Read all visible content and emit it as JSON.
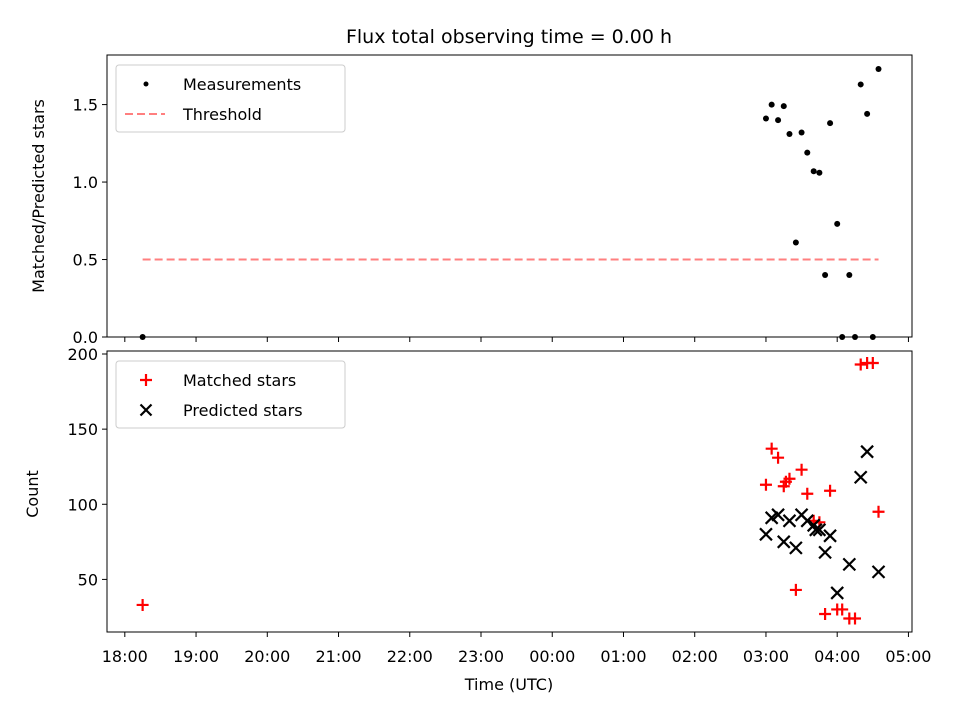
{
  "chart_data": [
    {
      "type": "scatter",
      "title": "Flux total observing time = 0.00 h",
      "xlabel": "",
      "ylabel": "Matched/Predicted stars",
      "xlim": [
        17.75,
        29.05
      ],
      "ylim": [
        0.0,
        1.82
      ],
      "yticks": [
        0.0,
        0.5,
        1.0,
        1.5
      ],
      "ytick_labels": [
        "0.0",
        "0.5",
        "1.0",
        "1.5"
      ],
      "legend_position": "top-left",
      "series": [
        {
          "name": "Measurements",
          "kind": "dot",
          "color": "#000000",
          "x": [
            18.25,
            27.0,
            27.08,
            27.17,
            27.25,
            27.33,
            27.42,
            27.5,
            27.58,
            27.67,
            27.75,
            27.83,
            27.9,
            28.0,
            28.07,
            28.17,
            28.25,
            28.33,
            28.42,
            28.5,
            28.58
          ],
          "y": [
            0.0,
            1.41,
            1.5,
            1.4,
            1.49,
            1.31,
            0.61,
            1.32,
            1.19,
            1.07,
            1.06,
            0.4,
            1.38,
            0.73,
            0.0,
            0.4,
            0.0,
            1.63,
            1.44,
            0.0,
            1.73
          ]
        },
        {
          "name": "Threshold",
          "kind": "dashed-line",
          "color": "#ff7f7f",
          "x": [
            18.25,
            28.58
          ],
          "y": [
            0.5,
            0.5
          ]
        }
      ]
    },
    {
      "type": "scatter",
      "title": "",
      "xlabel": "Time (UTC)",
      "ylabel": "Count",
      "xlim": [
        17.75,
        29.05
      ],
      "ylim": [
        15,
        202
      ],
      "yticks": [
        50,
        100,
        150,
        200
      ],
      "ytick_labels": [
        "50",
        "100",
        "150",
        "200"
      ],
      "xticks": [
        18,
        19,
        20,
        21,
        22,
        23,
        24,
        25,
        26,
        27,
        28,
        29
      ],
      "xtick_labels": [
        "18:00",
        "19:00",
        "20:00",
        "21:00",
        "22:00",
        "23:00",
        "00:00",
        "01:00",
        "02:00",
        "03:00",
        "04:00",
        "05:00"
      ],
      "legend_position": "top-left",
      "series": [
        {
          "name": "Matched stars",
          "kind": "plus",
          "color": "#ff0000",
          "x": [
            18.25,
            27.0,
            27.08,
            27.17,
            27.25,
            27.33,
            27.42,
            27.5,
            27.58,
            27.67,
            27.75,
            27.83,
            27.9,
            28.0,
            28.07,
            28.17,
            28.25,
            28.33,
            28.42,
            28.5,
            28.58,
            27.28
          ],
          "y": [
            33,
            113,
            137,
            131,
            112,
            117,
            43,
            123,
            107,
            89,
            88,
            27,
            109,
            30,
            30,
            24,
            24,
            193,
            194,
            194,
            95,
            115
          ]
        },
        {
          "name": "Predicted stars",
          "kind": "cross",
          "color": "#000000",
          "x": [
            27.0,
            27.08,
            27.17,
            27.25,
            27.33,
            27.42,
            27.5,
            27.58,
            27.67,
            27.7,
            27.75,
            27.83,
            27.9,
            28.0,
            28.17,
            28.33,
            28.42,
            28.58
          ],
          "y": [
            80,
            91,
            93,
            75,
            89,
            71,
            93,
            89,
            86,
            83,
            83,
            68,
            79,
            41,
            60,
            118,
            135,
            55
          ]
        }
      ]
    }
  ]
}
